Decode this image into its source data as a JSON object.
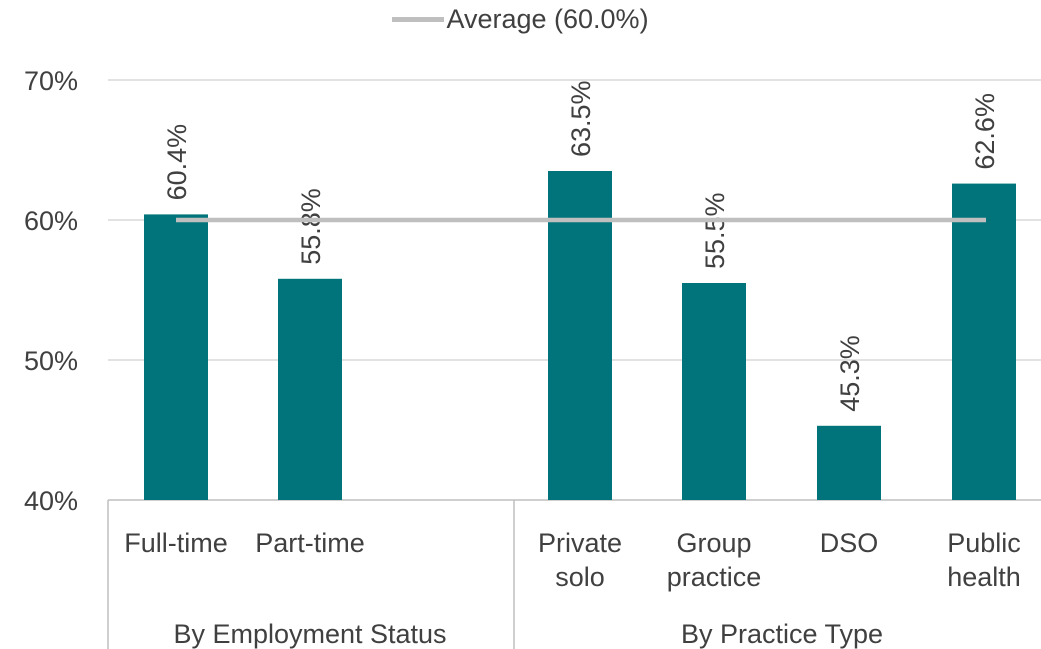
{
  "chart_data": {
    "type": "bar",
    "groups": [
      {
        "label": "By Employment Status",
        "categories": [
          "Full-time",
          "Part-time"
        ],
        "values": [
          60.4,
          55.8
        ]
      },
      {
        "label": "By Practice Type",
        "categories": [
          "Private\nsolo",
          "Group\npractice",
          "DSO",
          "Public\nhealth"
        ],
        "values": [
          63.5,
          55.5,
          45.3,
          62.6
        ]
      }
    ],
    "data_labels": [
      "60.4%",
      "55.8%",
      "63.5%",
      "55.5%",
      "45.3%",
      "62.6%"
    ],
    "average": {
      "label": "Average (60.0%)",
      "value": 60.0
    },
    "yticks": [
      "40%",
      "50%",
      "60%",
      "70%"
    ],
    "ylim": [
      40,
      70
    ],
    "grid": true,
    "legend_position": "top",
    "colors": {
      "bar": "#00747a",
      "average_line": "#bfbfbf",
      "grid": "#d9d9d9",
      "text": "#404040"
    }
  }
}
